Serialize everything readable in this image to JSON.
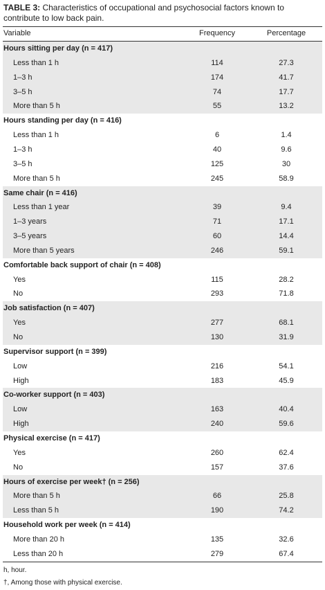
{
  "title": {
    "label": "TABLE 3:",
    "text": "Characteristics of occupational and psychosocial factors known to contribute to low back pain."
  },
  "table": {
    "columns": [
      "Variable",
      "Frequency",
      "Percentage"
    ],
    "groups": [
      {
        "title": "Hours sitting per day (n = 417)",
        "rows": [
          [
            "Less than 1 h",
            114,
            27.3
          ],
          [
            "1–3 h",
            174,
            41.7
          ],
          [
            "3–5 h",
            74,
            17.7
          ],
          [
            "More than 5 h",
            55,
            13.2
          ]
        ]
      },
      {
        "title": "Hours standing per day (n = 416)",
        "rows": [
          [
            "Less than 1 h",
            6,
            1.4
          ],
          [
            "1–3 h",
            40,
            9.6
          ],
          [
            "3–5 h",
            125,
            30
          ],
          [
            "More than 5 h",
            245,
            58.9
          ]
        ]
      },
      {
        "title": "Same chair (n = 416)",
        "rows": [
          [
            "Less than 1 year",
            39,
            9.4
          ],
          [
            "1–3 years",
            71,
            17.1
          ],
          [
            "3–5 years",
            60,
            14.4
          ],
          [
            "More than 5 years",
            246,
            59.1
          ]
        ]
      },
      {
        "title": "Comfortable back support of chair (n = 408)",
        "rows": [
          [
            "Yes",
            115,
            28.2
          ],
          [
            "No",
            293,
            71.8
          ]
        ]
      },
      {
        "title": "Job satisfaction (n = 407)",
        "rows": [
          [
            "Yes",
            277,
            68.1
          ],
          [
            "No",
            130,
            31.9
          ]
        ]
      },
      {
        "title": "Supervisor support (n = 399)",
        "rows": [
          [
            "Low",
            216,
            54.1
          ],
          [
            "High",
            183,
            45.9
          ]
        ]
      },
      {
        "title": "Co-worker support (n = 403)",
        "rows": [
          [
            "Low",
            163,
            40.4
          ],
          [
            "High",
            240,
            59.6
          ]
        ]
      },
      {
        "title": "Physical exercise (n = 417)",
        "rows": [
          [
            "Yes",
            260,
            62.4
          ],
          [
            "No",
            157,
            37.6
          ]
        ]
      },
      {
        "title": "Hours of exercise per week† (n = 256)",
        "rows": [
          [
            "More than 5 h",
            66,
            25.8
          ],
          [
            "Less than 5 h",
            190,
            74.2
          ]
        ]
      },
      {
        "title": "Household work per week (n = 414)",
        "rows": [
          [
            "More than 20 h",
            135,
            32.6
          ],
          [
            "Less than 20 h",
            279,
            67.4
          ]
        ]
      }
    ]
  },
  "footnotes": [
    "h, hour.",
    "†, Among those with physical exercise."
  ]
}
